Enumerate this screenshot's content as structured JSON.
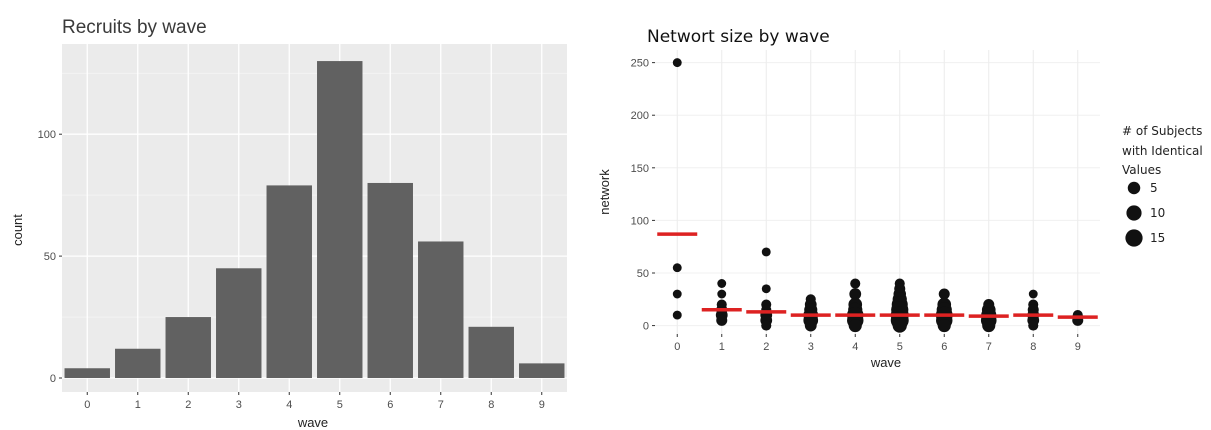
{
  "chart_data": [
    {
      "type": "bar",
      "title": "Recruits by wave",
      "xlabel": "wave",
      "ylabel": "count",
      "categories": [
        "0",
        "1",
        "2",
        "3",
        "4",
        "5",
        "6",
        "7",
        "8",
        "9"
      ],
      "values": [
        4,
        12,
        25,
        45,
        79,
        130,
        80,
        56,
        21,
        6
      ],
      "ylim": [
        0,
        137
      ],
      "yticks": [
        0,
        50,
        100
      ],
      "grid": true,
      "colors": {
        "bar": "#616161",
        "panel": "#ebebeb",
        "grid": "#ffffff"
      }
    },
    {
      "type": "scatter",
      "title": "Networt size by wave",
      "xlabel": "wave",
      "ylabel": "network",
      "categories": [
        "0",
        "1",
        "2",
        "3",
        "4",
        "5",
        "6",
        "7",
        "8",
        "9"
      ],
      "ylim": [
        -8,
        262
      ],
      "yticks": [
        0,
        50,
        100,
        150,
        200,
        250
      ],
      "grid": true,
      "points": [
        {
          "x": 0,
          "y": 250,
          "n": 1
        },
        {
          "x": 0,
          "y": 55,
          "n": 1
        },
        {
          "x": 0,
          "y": 30,
          "n": 1
        },
        {
          "x": 0,
          "y": 10,
          "n": 1
        },
        {
          "x": 1,
          "y": 40,
          "n": 1
        },
        {
          "x": 1,
          "y": 30,
          "n": 1
        },
        {
          "x": 1,
          "y": 20,
          "n": 2
        },
        {
          "x": 1,
          "y": 15,
          "n": 3
        },
        {
          "x": 1,
          "y": 10,
          "n": 4
        },
        {
          "x": 1,
          "y": 5,
          "n": 3
        },
        {
          "x": 2,
          "y": 70,
          "n": 1
        },
        {
          "x": 2,
          "y": 35,
          "n": 1
        },
        {
          "x": 2,
          "y": 20,
          "n": 2
        },
        {
          "x": 2,
          "y": 15,
          "n": 2
        },
        {
          "x": 2,
          "y": 10,
          "n": 4
        },
        {
          "x": 2,
          "y": 5,
          "n": 4
        },
        {
          "x": 2,
          "y": 0,
          "n": 2
        },
        {
          "x": 3,
          "y": 25,
          "n": 2
        },
        {
          "x": 3,
          "y": 20,
          "n": 4
        },
        {
          "x": 3,
          "y": 15,
          "n": 6
        },
        {
          "x": 3,
          "y": 10,
          "n": 9
        },
        {
          "x": 3,
          "y": 5,
          "n": 9
        },
        {
          "x": 3,
          "y": 0,
          "n": 4
        },
        {
          "x": 4,
          "y": 40,
          "n": 2
        },
        {
          "x": 4,
          "y": 30,
          "n": 4
        },
        {
          "x": 4,
          "y": 20,
          "n": 7
        },
        {
          "x": 4,
          "y": 15,
          "n": 8
        },
        {
          "x": 4,
          "y": 10,
          "n": 13
        },
        {
          "x": 4,
          "y": 5,
          "n": 13
        },
        {
          "x": 4,
          "y": 0,
          "n": 6
        },
        {
          "x": 5,
          "y": 40,
          "n": 2
        },
        {
          "x": 5,
          "y": 35,
          "n": 3
        },
        {
          "x": 5,
          "y": 30,
          "n": 5
        },
        {
          "x": 5,
          "y": 25,
          "n": 8
        },
        {
          "x": 5,
          "y": 20,
          "n": 12
        },
        {
          "x": 5,
          "y": 15,
          "n": 15
        },
        {
          "x": 5,
          "y": 10,
          "n": 17
        },
        {
          "x": 5,
          "y": 5,
          "n": 17
        },
        {
          "x": 5,
          "y": 0,
          "n": 8
        },
        {
          "x": 6,
          "y": 30,
          "n": 3
        },
        {
          "x": 6,
          "y": 20,
          "n": 7
        },
        {
          "x": 6,
          "y": 15,
          "n": 10
        },
        {
          "x": 6,
          "y": 10,
          "n": 14
        },
        {
          "x": 6,
          "y": 5,
          "n": 13
        },
        {
          "x": 6,
          "y": 0,
          "n": 6
        },
        {
          "x": 7,
          "y": 20,
          "n": 3
        },
        {
          "x": 7,
          "y": 15,
          "n": 7
        },
        {
          "x": 7,
          "y": 10,
          "n": 10
        },
        {
          "x": 7,
          "y": 5,
          "n": 11
        },
        {
          "x": 7,
          "y": 0,
          "n": 6
        },
        {
          "x": 8,
          "y": 30,
          "n": 1
        },
        {
          "x": 8,
          "y": 20,
          "n": 2
        },
        {
          "x": 8,
          "y": 15,
          "n": 3
        },
        {
          "x": 8,
          "y": 10,
          "n": 4
        },
        {
          "x": 8,
          "y": 5,
          "n": 4
        },
        {
          "x": 8,
          "y": 0,
          "n": 2
        },
        {
          "x": 9,
          "y": 10,
          "n": 2
        },
        {
          "x": 9,
          "y": 5,
          "n": 3
        }
      ],
      "means": [
        87,
        15,
        13,
        10,
        10,
        10,
        10,
        9,
        10,
        8
      ],
      "legend": {
        "title": "# of Subjects with Identical Values",
        "title_lines": [
          "# of Subjects",
          "with Identical",
          "Values"
        ],
        "sizes": [
          5,
          10,
          15
        ],
        "labels": [
          "5",
          "10",
          "15"
        ],
        "placement": "right"
      },
      "colors": {
        "point": "#111111",
        "mean": "#dd2222",
        "panel": "#ebebeb",
        "grid": "#ffffff"
      }
    }
  ]
}
